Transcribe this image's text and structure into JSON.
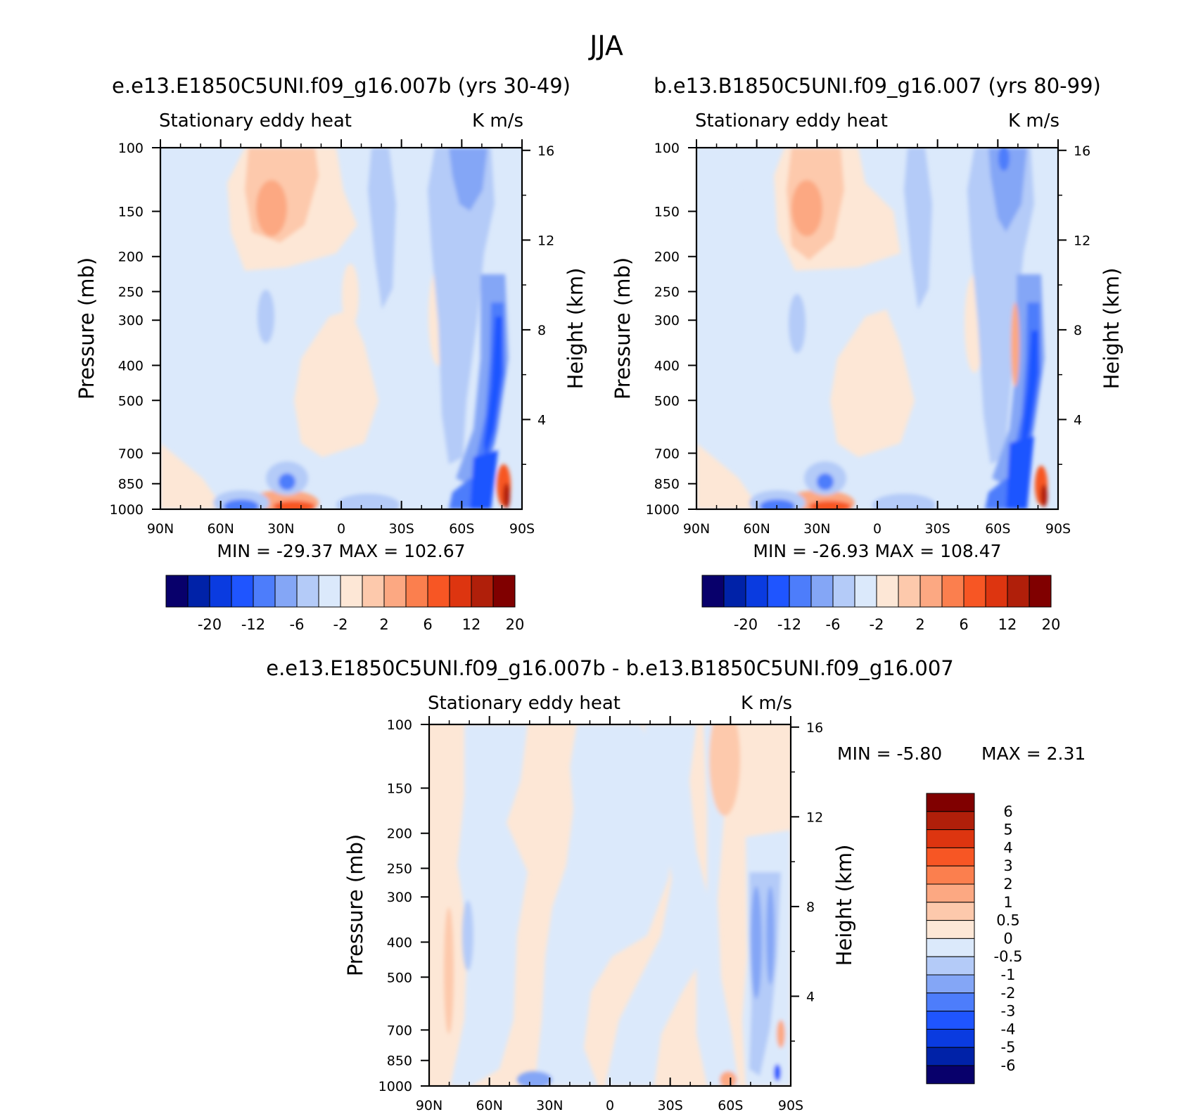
{
  "figure": {
    "title": "JJA"
  },
  "chart_data": [
    {
      "type": "heatmap",
      "title": "e.e13.E1850C5UNI.f09_g16.007b (yrs 30-49)",
      "subtitle_left": "Stationary eddy heat",
      "subtitle_right": "K m/s",
      "ylabel": "Pressure (mb)",
      "ylabel_right": "Height (km)",
      "xticks": [
        "90N",
        "60N",
        "30N",
        "0",
        "30S",
        "60S",
        "90S"
      ],
      "yticks": [
        "100",
        "150",
        "200",
        "250",
        "300",
        "400",
        "500",
        "700",
        "850",
        "1000"
      ],
      "yticks_right": [
        "16",
        "12",
        "8",
        "4"
      ],
      "stats": "MIN = -29.37   MAX = 102.67",
      "min": -29.37,
      "max": 102.67,
      "colorbar_labels": [
        "-20",
        "-12",
        "-6",
        "-2",
        "2",
        "6",
        "12",
        "20"
      ],
      "contour_levels": [
        -20,
        -16,
        -12,
        -8,
        -6,
        -4,
        -2,
        0,
        2,
        4,
        6,
        8,
        12,
        16,
        20
      ]
    },
    {
      "type": "heatmap",
      "title": "b.e13.B1850C5UNI.f09_g16.007 (yrs 80-99)",
      "subtitle_left": "Stationary eddy heat",
      "subtitle_right": "K m/s",
      "ylabel": "Pressure (mb)",
      "ylabel_right": "Height (km)",
      "xticks": [
        "90N",
        "60N",
        "30N",
        "0",
        "30S",
        "60S",
        "90S"
      ],
      "yticks": [
        "100",
        "150",
        "200",
        "250",
        "300",
        "400",
        "500",
        "700",
        "850",
        "1000"
      ],
      "yticks_right": [
        "16",
        "12",
        "8",
        "4"
      ],
      "stats": "MIN = -26.93   MAX = 108.47",
      "min": -26.93,
      "max": 108.47,
      "colorbar_labels": [
        "-20",
        "-12",
        "-6",
        "-2",
        "2",
        "6",
        "12",
        "20"
      ],
      "contour_levels": [
        -20,
        -16,
        -12,
        -8,
        -6,
        -4,
        -2,
        0,
        2,
        4,
        6,
        8,
        12,
        16,
        20
      ]
    },
    {
      "type": "heatmap",
      "title": "e.e13.E1850C5UNI.f09_g16.007b - b.e13.B1850C5UNI.f09_g16.007",
      "subtitle_left": "Stationary eddy heat",
      "subtitle_right": "K m/s",
      "ylabel": "Pressure (mb)",
      "ylabel_right": "Height (km)",
      "xticks": [
        "90N",
        "60N",
        "30N",
        "0",
        "30S",
        "60S",
        "90S"
      ],
      "yticks": [
        "100",
        "150",
        "200",
        "250",
        "300",
        "400",
        "500",
        "700",
        "850",
        "1000"
      ],
      "yticks_right": [
        "16",
        "12",
        "8",
        "4"
      ],
      "stats_min": "MIN =   -5.80",
      "stats_max": "MAX =    2.31",
      "min": -5.8,
      "max": 2.31,
      "colorbar_labels": [
        "6",
        "5",
        "4",
        "3",
        "2",
        "1",
        "0.5",
        "0",
        "-0.5",
        "-1",
        "-2",
        "-3",
        "-4",
        "-5",
        "-6"
      ],
      "contour_levels": [
        -6,
        -5,
        -4,
        -3,
        -2,
        -1,
        -0.5,
        0,
        0.5,
        1,
        2,
        3,
        4,
        5,
        6
      ]
    }
  ],
  "colors": {
    "abs_scale": [
      "#08006b",
      "#0022a8",
      "#0a3be0",
      "#1f55ff",
      "#4d7dfb",
      "#84a6f6",
      "#b4cbf8",
      "#dbe9fb",
      "#fde7d6",
      "#fdc9ac",
      "#fca882",
      "#fb7f4e",
      "#f75624",
      "#dd3510",
      "#b01f0a",
      "#800000"
    ],
    "diff_scale": [
      "#08006b",
      "#0022a8",
      "#0a3be0",
      "#1f55ff",
      "#4d7dfb",
      "#84a6f6",
      "#b4cbf8",
      "#dbe9fb",
      "#fde7d6",
      "#fdc9ac",
      "#fca882",
      "#fb7f4e",
      "#f75624",
      "#dd3510",
      "#b01f0a",
      "#800000"
    ]
  }
}
